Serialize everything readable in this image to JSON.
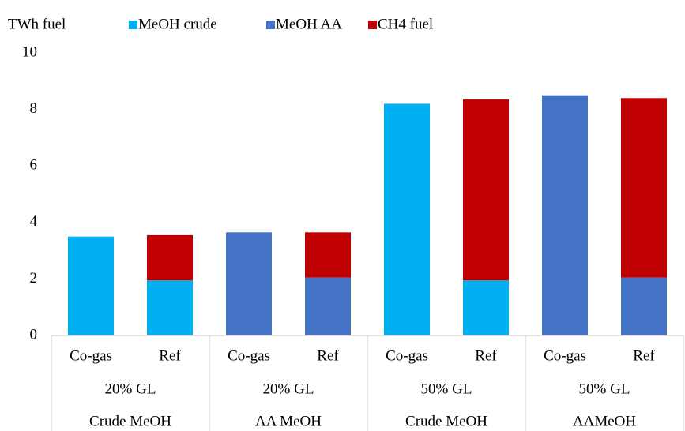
{
  "chart_data": {
    "type": "stacked-bar",
    "y_label": "TWh fuel",
    "categories": [
      "Co-gas",
      "Ref",
      "Co-gas",
      "Ref",
      "Co-gas",
      "Ref",
      "Co-gas",
      "Ref"
    ],
    "group_labels": [
      "20% GL",
      "20% GL",
      "50% GL",
      "50% GL"
    ],
    "group_names": [
      "Crude MeOH",
      "AA MeOH",
      "Crude MeOH",
      "AAMeOH"
    ],
    "series": [
      {
        "name": "MeOH crude",
        "color": "#00b0f0",
        "values": [
          3.5,
          1.95,
          null,
          null,
          8.2,
          1.95,
          null,
          null
        ]
      },
      {
        "name": "MeOH AA",
        "color": "#4472c4",
        "values": [
          null,
          null,
          3.65,
          2.05,
          null,
          null,
          8.5,
          2.05
        ]
      },
      {
        "name": "CH4 fuel",
        "color": "#c00000",
        "values": [
          null,
          1.6,
          null,
          1.6,
          null,
          6.4,
          null,
          6.35
        ]
      }
    ],
    "ylim": [
      0,
      10
    ],
    "yticks": [
      0,
      2,
      4,
      6,
      8,
      10
    ],
    "grid": false,
    "legend": "top"
  }
}
